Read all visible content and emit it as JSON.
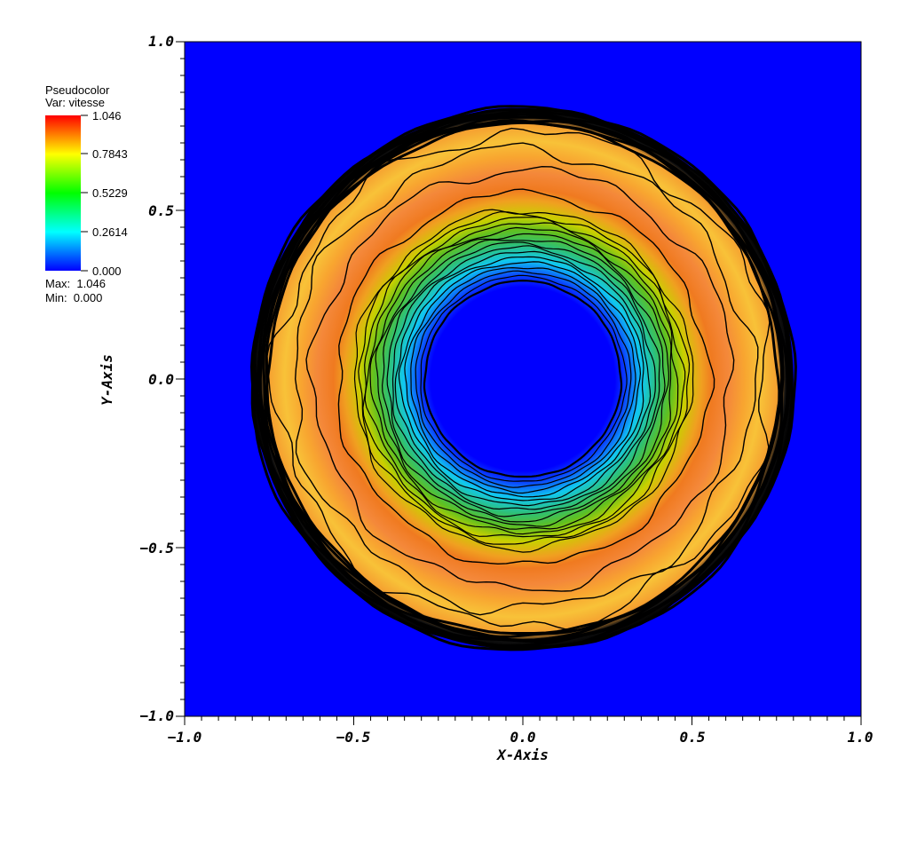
{
  "legend": {
    "plot_type": "Pseudocolor",
    "variable_label": "Var: vitesse",
    "tick_labels": [
      "1.046",
      "0.7843",
      "0.5229",
      "0.2614",
      "0.000"
    ],
    "max_label": "Max:  1.046",
    "min_label": "Min:  0.000",
    "colormap": [
      "#0000ff",
      "#00ffff",
      "#00ff00",
      "#ffff00",
      "#ff0000"
    ]
  },
  "axes": {
    "x_title": "X-Axis",
    "y_title": "Y-Axis",
    "x_tick_labels": [
      "−1.0",
      "−0.5",
      "0.0",
      "0.5",
      "1.0"
    ],
    "y_tick_labels": [
      "1.0",
      "0.5",
      "0.0",
      "−0.5",
      "−1.0"
    ]
  },
  "chart_data": {
    "type": "heatmap",
    "description_free": true,
    "variable": "vitesse",
    "min": 0.0,
    "max": 1.046,
    "xlim": [
      -1.0,
      1.0
    ],
    "ylim": [
      -1.0,
      1.0
    ],
    "x_ticks": [
      -1.0,
      -0.5,
      0.0,
      0.5,
      1.0
    ],
    "y_ticks": [
      -1.0,
      -0.5,
      0.0,
      0.5,
      1.0
    ],
    "legend_ticks": [
      1.046,
      0.7843,
      0.5229,
      0.2614,
      0.0
    ],
    "background_value": 0.0,
    "radial_profile": [
      {
        "r": 0.0,
        "value": 0.0
      },
      {
        "r": 0.28,
        "value": 0.0
      },
      {
        "r": 0.3,
        "value": 0.15
      },
      {
        "r": 0.36,
        "value": 0.35
      },
      {
        "r": 0.43,
        "value": 0.55
      },
      {
        "r": 0.5,
        "value": 0.8
      },
      {
        "r": 0.58,
        "value": 0.95
      },
      {
        "r": 0.66,
        "value": 0.93
      },
      {
        "r": 0.74,
        "value": 0.88
      },
      {
        "r": 0.78,
        "value": 0.5
      },
      {
        "r": 0.8,
        "value": 0.0
      },
      {
        "r": 1.42,
        "value": 0.0
      }
    ],
    "contour_levels_inner": [
      0.05,
      0.1,
      0.15,
      0.2,
      0.25,
      0.3,
      0.35,
      0.4,
      0.45,
      0.5,
      0.55,
      0.6,
      0.65,
      0.7,
      0.75,
      0.8
    ],
    "contour_levels_outer": [
      0.9,
      0.8,
      0.7,
      0.6,
      0.5,
      0.4,
      0.3,
      0.2,
      0.1
    ],
    "legend_position": "top-left",
    "grid": false
  }
}
